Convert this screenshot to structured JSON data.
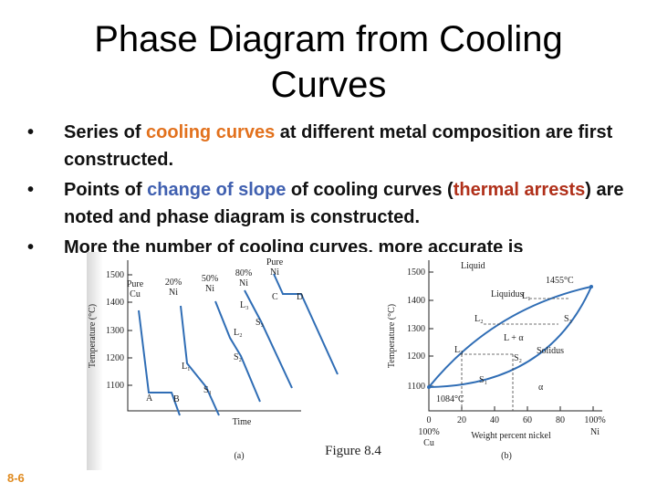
{
  "title": "Phase Diagram from Cooling Curves",
  "bullets": [
    [
      {
        "text": "Series of "
      },
      {
        "text": "cooling curves",
        "color": "#e2711d"
      },
      {
        "text": " at different metal composition are first constructed."
      }
    ],
    [
      {
        "text": "Points of "
      },
      {
        "text": "change of slope",
        "color": "#4060b0"
      },
      {
        "text": " of cooling curves ("
      },
      {
        "text": "thermal arrests",
        "color": "#b0301a"
      },
      {
        "text": ") are noted and phase diagram is constructed."
      }
    ],
    [
      {
        "text": "More the number of cooling curves, more accurate is"
      }
    ]
  ],
  "figure": {
    "a": {
      "y_label": "Temperature (°C)",
      "y_ticks": [
        1500,
        1400,
        1300,
        1200,
        1100
      ],
      "x_label": "Time",
      "curves": [
        [
          "Pure",
          "Cu"
        ],
        [
          "20%",
          "Ni"
        ],
        [
          "50%",
          "Ni"
        ],
        [
          "80%",
          "Ni"
        ],
        [
          "Pure",
          "Ni"
        ]
      ],
      "points": [
        "A",
        "B",
        "L₁",
        "S₁",
        "L₂",
        "S₂",
        "L₃",
        "S₃",
        "C",
        "D"
      ],
      "tag": "(a)"
    },
    "b": {
      "y_label": "Temperature (°C)",
      "y_ticks": [
        1500,
        1400,
        1300,
        1200,
        1100
      ],
      "x_ticks": [
        0,
        20,
        40,
        60,
        80,
        "100%"
      ],
      "x_label": "Weight percent nickel",
      "ends": [
        [
          "100%",
          "Cu"
        ],
        [
          "",
          "Ni"
        ]
      ],
      "regions": [
        "Liquid",
        "Liquidus",
        "Solidus",
        "L + α",
        "α"
      ],
      "temps": [
        "1455°C",
        "1084°C"
      ],
      "points": [
        "L₁",
        "L₂",
        "L₃",
        "S₁",
        "S₂",
        "S₃"
      ],
      "tag": "(b)"
    },
    "caption": "Figure 8.4"
  },
  "slide_number": "8-6"
}
